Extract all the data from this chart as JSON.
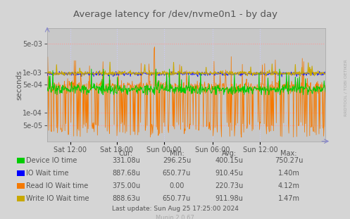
{
  "title": "Average latency for /dev/nvme0n1 - by day",
  "ylabel": "seconds",
  "background_color": "#d5d5d5",
  "plot_bg_color": "#c8c8c8",
  "grid_color_h": "#ff9999",
  "grid_color_v": "#ccccff",
  "ylim_log": [
    2e-05,
    0.012
  ],
  "yticks": [
    5e-05,
    0.0001,
    0.0005,
    0.001,
    0.005
  ],
  "ytick_labels": [
    "5e-05",
    "1e-04",
    "5e-04",
    "1e-03",
    "5e-03"
  ],
  "xtick_labels": [
    "Sat 12:00",
    "Sat 18:00",
    "Sun 00:00",
    "Sun 06:00",
    "Sun 12:00"
  ],
  "series": {
    "device_io": {
      "color": "#00cc00"
    },
    "io_wait": {
      "color": "#0000ff"
    },
    "read_io_wait": {
      "color": "#f57900"
    },
    "write_io_wait": {
      "color": "#c8a800"
    }
  },
  "legend_data": [
    {
      "label": "Device IO time",
      "color": "#00cc00",
      "cur": "331.08u",
      "min": "296.25u",
      "avg": "400.15u",
      "max": "750.27u"
    },
    {
      "label": "IO Wait time",
      "color": "#0000ff",
      "cur": "887.68u",
      "min": "650.77u",
      "avg": "910.45u",
      "max": "1.40m"
    },
    {
      "label": "Read IO Wait time",
      "color": "#f57900",
      "cur": "375.00u",
      "min": "0.00",
      "avg": "220.73u",
      "max": "4.12m"
    },
    {
      "label": "Write IO Wait time",
      "color": "#c8a800",
      "cur": "888.63u",
      "min": "650.77u",
      "avg": "911.98u",
      "max": "1.47m"
    }
  ],
  "footer": "Last update: Sun Aug 25 17:25:00 2024",
  "munin_version": "Munin 2.0.67",
  "rrdtool_label": "RRDTOOL / TOBI OETIKER",
  "title_color": "#555555",
  "axis_color": "#555555",
  "text_color": "#555555",
  "n_points": 600,
  "seed": 42
}
